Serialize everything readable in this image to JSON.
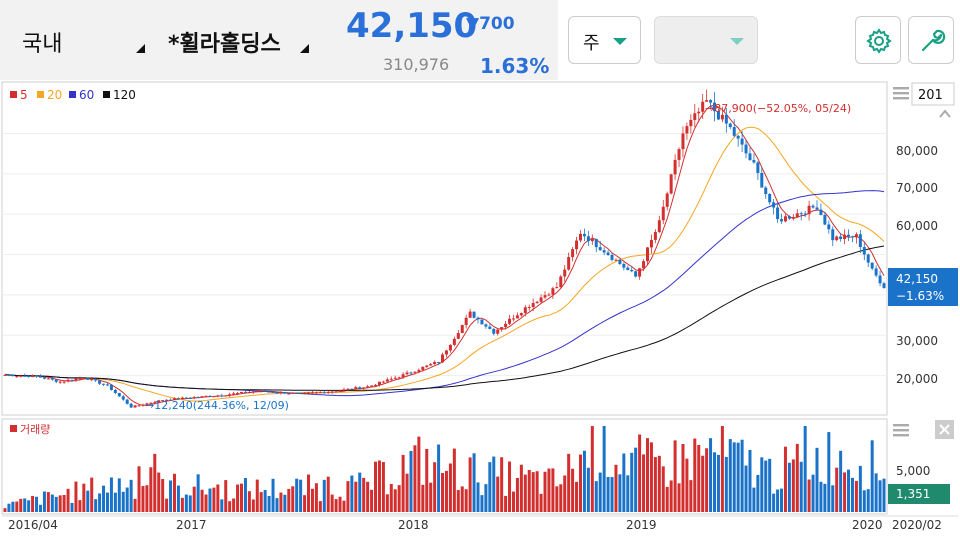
{
  "header": {
    "market": "국내",
    "stock_name": "*휠라홀딩스",
    "price": "42,150",
    "change": "▼700",
    "volume": "310,976",
    "change_pct": "1.63%",
    "period": "주",
    "colors": {
      "down": "#2a70d8",
      "up": "#d32f2f",
      "accent": "#19a085"
    }
  },
  "toolbar": {
    "settings_icon": "gear-icon",
    "tools_icon": "wrench-icon"
  },
  "chart_data": {
    "type": "candlestick",
    "period": "weekly",
    "legend": [
      {
        "label": "5",
        "color": "#d32f2f"
      },
      {
        "label": "20",
        "color": "#f5a623"
      },
      {
        "label": "60",
        "color": "#3333cc"
      },
      {
        "label": "120",
        "color": "#111111"
      }
    ],
    "y_ticks": [
      "80,000",
      "70,000",
      "60,000",
      "30,000",
      "20,000"
    ],
    "y_range": [
      11000,
      92000
    ],
    "x_ticks": [
      "2016/04",
      "2017",
      "2018",
      "2019",
      "2020",
      "2020/02"
    ],
    "price_anchors": [
      [
        0,
        20200
      ],
      [
        8,
        19800
      ],
      [
        14,
        18500
      ],
      [
        20,
        19600
      ],
      [
        26,
        17500
      ],
      [
        32,
        12240
      ],
      [
        40,
        14000
      ],
      [
        55,
        15200
      ],
      [
        64,
        16200
      ],
      [
        75,
        15500
      ],
      [
        82,
        16000
      ],
      [
        92,
        17300
      ],
      [
        100,
        19800
      ],
      [
        110,
        23500
      ],
      [
        118,
        35500
      ],
      [
        124,
        30800
      ],
      [
        132,
        36800
      ],
      [
        140,
        42000
      ],
      [
        146,
        55500
      ],
      [
        152,
        51000
      ],
      [
        160,
        44500
      ],
      [
        166,
        57800
      ],
      [
        172,
        80000
      ],
      [
        178,
        87900
      ],
      [
        184,
        81200
      ],
      [
        190,
        72000
      ],
      [
        196,
        58500
      ],
      [
        202,
        60500
      ],
      [
        206,
        62000
      ],
      [
        210,
        54000
      ],
      [
        216,
        54500
      ],
      [
        220,
        46000
      ],
      [
        223,
        42150
      ]
    ],
    "volume_anchors": [
      [
        0,
        200
      ],
      [
        30,
        900
      ],
      [
        60,
        700
      ],
      [
        90,
        800
      ],
      [
        105,
        1600
      ],
      [
        120,
        1200
      ],
      [
        140,
        900
      ],
      [
        150,
        2100
      ],
      [
        165,
        1400
      ],
      [
        180,
        1900
      ],
      [
        195,
        1200
      ],
      [
        210,
        1800
      ],
      [
        223,
        1351
      ]
    ],
    "max_annotation": "→87,900(−52.05%, 05/24)",
    "min_annotation": "→12,240(244.36%, 12/09)",
    "current_price_label": "42,150",
    "current_pct_label": "−1.63%",
    "volume_title": "거래량",
    "volume_tick": "5,000",
    "volume_current": "1,351",
    "scale_box_label": "201"
  }
}
